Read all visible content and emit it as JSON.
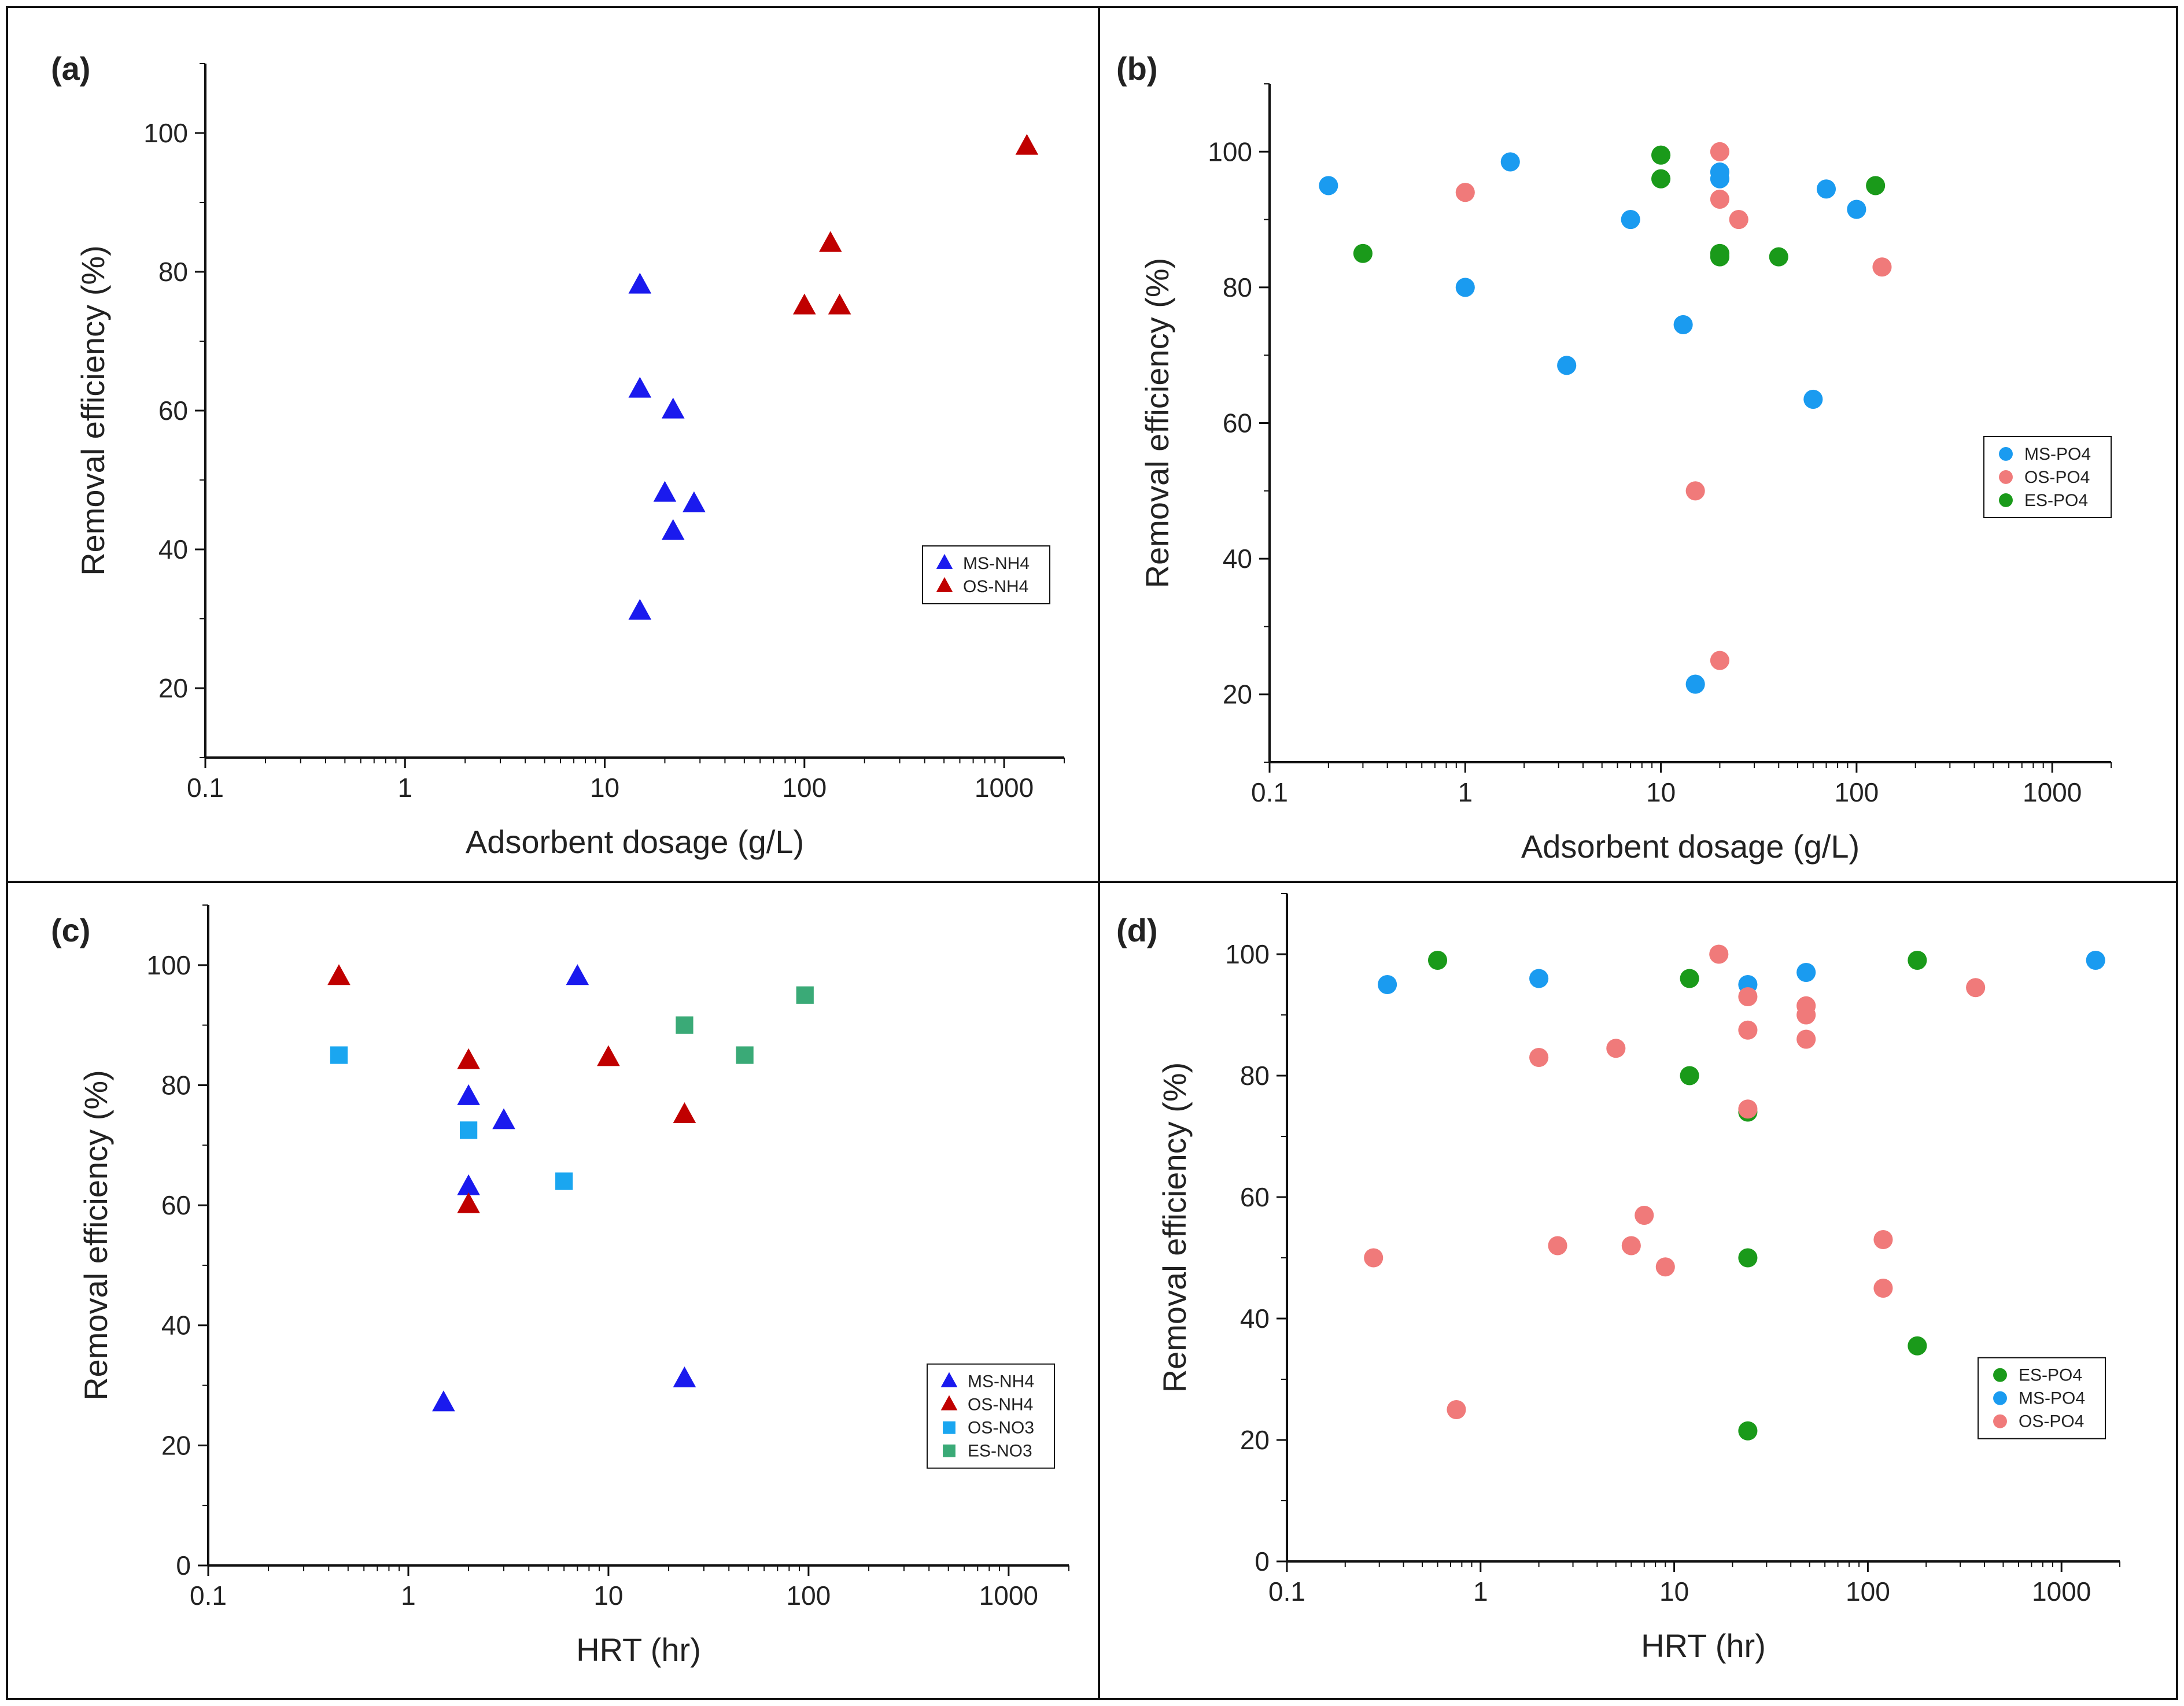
{
  "colors": {
    "ms_nh4": "#1a1aee",
    "os_nh4": "#c00000",
    "ms_po4": "#1a9bf0",
    "os_po4": "#f07a7a",
    "es_po4": "#1a9a1a",
    "os_no3": "#1aa6f0",
    "es_no3": "#3aaa77"
  },
  "chart_data": [
    {
      "type": "scatter",
      "panel_label": "(a)",
      "xlabel": "Adsorbent dosage (g/L)",
      "ylabel": "Removal efficiency (%)",
      "xscale": "log",
      "xlim": [
        0.1,
        2000
      ],
      "ylim": [
        10,
        110
      ],
      "xticks": [
        0.1,
        1,
        10,
        100,
        1000
      ],
      "xtick_labels": [
        "0.1",
        "1",
        "10",
        "100",
        "1000"
      ],
      "yticks": [
        20,
        40,
        60,
        80,
        100
      ],
      "ytick_labels": [
        "20",
        "40",
        "60",
        "80",
        "100"
      ],
      "legend": "lower-right",
      "series": [
        {
          "name": "MS-NH4",
          "marker": "triangle",
          "color": "#1a1aee",
          "x": [
            15,
            15,
            22,
            20,
            28,
            22,
            15
          ],
          "y": [
            78,
            63,
            60,
            48,
            46.5,
            42.5,
            31
          ]
        },
        {
          "name": "OS-NH4",
          "marker": "triangle",
          "color": "#c00000",
          "x": [
            1300,
            135,
            100,
            150
          ],
          "y": [
            98,
            84,
            75,
            75
          ]
        }
      ]
    },
    {
      "type": "scatter",
      "panel_label": "(b)",
      "xlabel": "Adsorbent dosage (g/L)",
      "ylabel": "Removal efficiency (%)",
      "xscale": "log",
      "xlim": [
        0.1,
        2000
      ],
      "ylim": [
        10,
        110
      ],
      "xticks": [
        0.1,
        1,
        10,
        100,
        1000
      ],
      "xtick_labels": [
        "0.1",
        "1",
        "10",
        "100",
        "1000"
      ],
      "yticks": [
        20,
        40,
        60,
        80,
        100
      ],
      "ytick_labels": [
        "20",
        "40",
        "60",
        "80",
        "100"
      ],
      "legend": "right",
      "series": [
        {
          "name": "MS-PO4",
          "marker": "circle",
          "color": "#1a9bf0",
          "x": [
            0.2,
            1.7,
            20,
            20,
            7,
            70,
            100,
            1,
            13,
            3.3,
            60,
            15
          ],
          "y": [
            95,
            98.5,
            97,
            96,
            90,
            94.5,
            91.5,
            80,
            74.5,
            68.5,
            63.5,
            21.5
          ]
        },
        {
          "name": "OS-PO4",
          "marker": "circle",
          "color": "#f07a7a",
          "x": [
            1,
            20,
            20,
            25,
            135,
            15,
            20
          ],
          "y": [
            94,
            100,
            93,
            90,
            83,
            50,
            25
          ]
        },
        {
          "name": "ES-PO4",
          "marker": "circle",
          "color": "#1a9a1a",
          "x": [
            0.3,
            10,
            10,
            20,
            20,
            40,
            125
          ],
          "y": [
            85,
            99.5,
            96,
            85,
            84.5,
            84.5,
            95
          ]
        }
      ]
    },
    {
      "type": "scatter",
      "panel_label": "(c)",
      "xlabel": "HRT (hr)",
      "ylabel": "Removal efficiency (%)",
      "xscale": "log",
      "xlim": [
        0.1,
        2000
      ],
      "ylim": [
        0,
        110
      ],
      "xticks": [
        0.1,
        1,
        10,
        100,
        1000
      ],
      "xtick_labels": [
        "0.1",
        "1",
        "10",
        "100",
        "1000"
      ],
      "yticks": [
        0,
        20,
        40,
        60,
        80,
        100
      ],
      "ytick_labels": [
        "0",
        "20",
        "40",
        "60",
        "80",
        "100"
      ],
      "legend": "lower-right",
      "series": [
        {
          "name": "MS-NH4",
          "marker": "triangle",
          "color": "#1a1aee",
          "x": [
            7,
            2,
            3,
            2,
            1.5,
            24
          ],
          "y": [
            98,
            78,
            74,
            63,
            27,
            31
          ]
        },
        {
          "name": "OS-NH4",
          "marker": "triangle",
          "color": "#c00000",
          "x": [
            0.45,
            2,
            10,
            24,
            2
          ],
          "y": [
            98,
            84,
            84.5,
            75,
            60
          ]
        },
        {
          "name": "OS-NO3",
          "marker": "square",
          "color": "#1aa6f0",
          "x": [
            0.45,
            2,
            6
          ],
          "y": [
            85,
            72.5,
            64
          ]
        },
        {
          "name": "ES-NO3",
          "marker": "square",
          "color": "#3aaa77",
          "x": [
            24,
            48,
            96
          ],
          "y": [
            90,
            85,
            95
          ]
        }
      ]
    },
    {
      "type": "scatter",
      "panel_label": "(d)",
      "xlabel": "HRT (hr)",
      "ylabel": "Removal efficiency (%)",
      "xscale": "log",
      "xlim": [
        0.1,
        2000
      ],
      "ylim": [
        0,
        110
      ],
      "xticks": [
        0.1,
        1,
        10,
        100,
        1000
      ],
      "xtick_labels": [
        "0.1",
        "1",
        "10",
        "100",
        "1000"
      ],
      "yticks": [
        0,
        20,
        40,
        60,
        80,
        100
      ],
      "ytick_labels": [
        "0",
        "20",
        "40",
        "60",
        "80",
        "100"
      ],
      "legend": "lower-right",
      "series": [
        {
          "name": "ES-PO4",
          "marker": "circle",
          "color": "#1a9a1a",
          "x": [
            0.6,
            12,
            12,
            24,
            24,
            24,
            180,
            180
          ],
          "y": [
            99,
            96,
            80,
            74,
            50,
            21.5,
            99,
            35.5
          ]
        },
        {
          "name": "MS-PO4",
          "marker": "circle",
          "color": "#1a9bf0",
          "x": [
            0.33,
            2,
            24,
            48,
            1500
          ],
          "y": [
            95,
            96,
            95,
            97,
            99
          ]
        },
        {
          "name": "OS-PO4",
          "marker": "circle",
          "color": "#f07a7a",
          "x": [
            17,
            24,
            24,
            48,
            48,
            48,
            360,
            2,
            5,
            24,
            7,
            2.5,
            6,
            9,
            120,
            120,
            0.28,
            0.75
          ],
          "y": [
            100,
            93,
            87.5,
            91.5,
            90,
            86,
            94.5,
            83,
            84.5,
            74.5,
            57,
            52,
            52,
            48.5,
            53,
            45,
            50,
            25
          ]
        }
      ]
    }
  ]
}
